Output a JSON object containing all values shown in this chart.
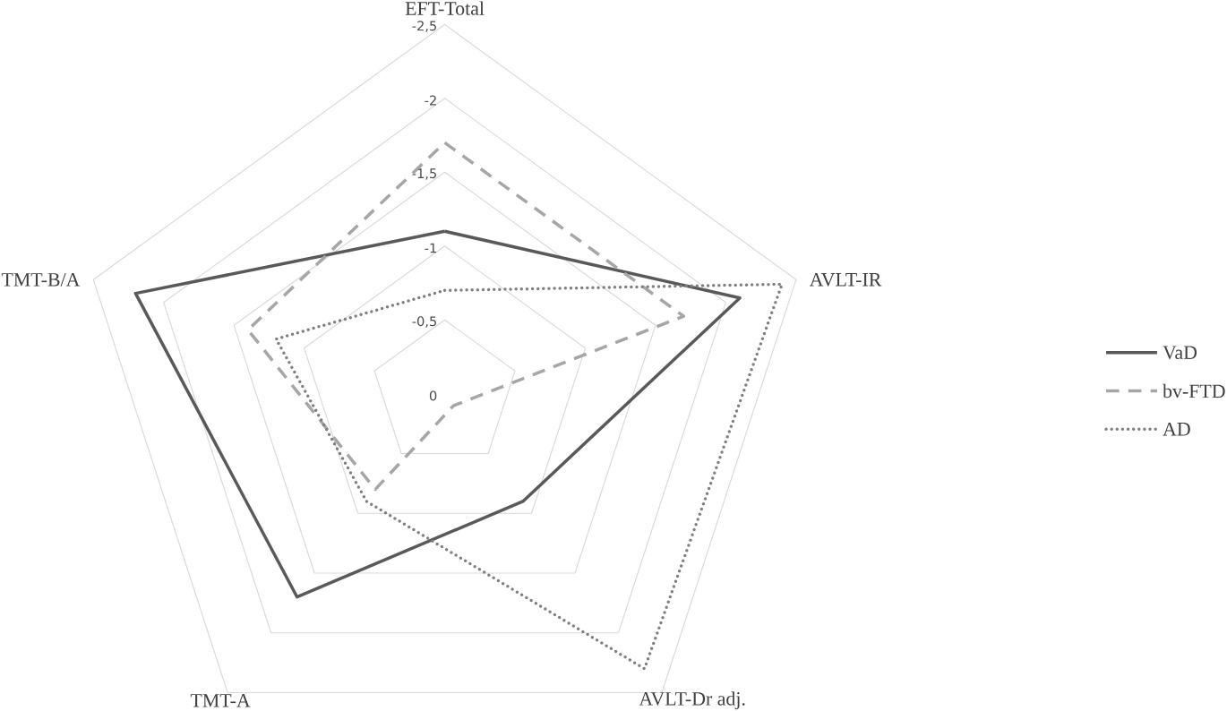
{
  "chart_data": {
    "type": "radar",
    "categories": [
      "EFT-Total",
      "AVLT-IR",
      "AVLT-Dr adj.",
      "TMT-A",
      "TMT-B/A"
    ],
    "series": [
      {
        "name": "VaD",
        "color": "#595959",
        "line_style": "solid",
        "values": [
          -1.1,
          -2.1,
          -0.9,
          -1.7,
          -2.2
        ]
      },
      {
        "name": "bv-FTD",
        "color": "#a6a6a6",
        "line_style": "dashed",
        "values": [
          -1.7,
          -1.7,
          -0.1,
          -0.8,
          -1.4
        ]
      },
      {
        "name": "AD",
        "color": "#7f7f7f",
        "line_style": "dotted",
        "values": [
          -0.7,
          -2.4,
          -2.3,
          -0.9,
          -1.2
        ]
      }
    ],
    "ylim": [
      0,
      -2.5
    ],
    "yticks": [
      0,
      {
        "value": -0.5,
        "label": "-0,5"
      },
      {
        "value": -1,
        "label": "-1"
      },
      {
        "value": -1.5,
        "label": "-1,5"
      },
      {
        "value": -2,
        "label": "-2"
      },
      {
        "value": -2.5,
        "label": "-2,5"
      }
    ],
    "grid": true,
    "legend": "right",
    "marker": "none"
  }
}
